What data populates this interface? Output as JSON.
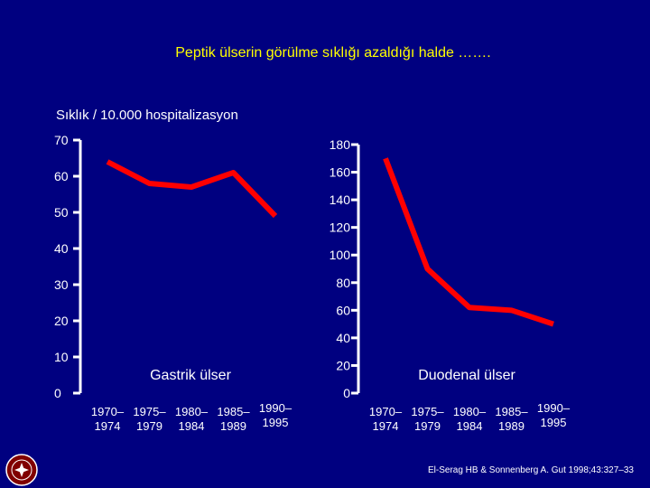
{
  "slide": {
    "title": "Peptik ülserin görülme sıklığı azaldığı halde …….",
    "unit_label": "Sıklık / 10.000 hospitalizasyon",
    "citation": "El-Serag HB & Sonnenberg A. Gut 1998;43:327–33",
    "colors": {
      "background": "#000080",
      "title": "#ffff00",
      "line": "#ff0000",
      "text": "#ffffff"
    },
    "logo_icon": "university-seal-icon"
  },
  "chart_data": [
    {
      "type": "line",
      "title": "Gastrik ülser",
      "x": [
        [
          "1970–",
          "1974"
        ],
        [
          "1975–",
          "1979"
        ],
        [
          "1980–",
          "1984"
        ],
        [
          "1985–",
          "1989"
        ],
        [
          "1990–",
          "1995"
        ]
      ],
      "y_ticks": [
        0,
        10,
        20,
        30,
        40,
        50,
        60,
        70
      ],
      "ylim": [
        0,
        70
      ],
      "series": [
        {
          "values": [
            64,
            58,
            57,
            61,
            49
          ]
        }
      ],
      "grid": false
    },
    {
      "type": "line",
      "title": "Duodenal ülser",
      "x": [
        [
          "1970–",
          "1974"
        ],
        [
          "1975–",
          "1979"
        ],
        [
          "1980–",
          "1984"
        ],
        [
          "1985–",
          "1989"
        ],
        [
          "1990–",
          "1995"
        ]
      ],
      "y_ticks": [
        0,
        20,
        40,
        60,
        80,
        100,
        120,
        140,
        160,
        180
      ],
      "ylim": [
        0,
        180
      ],
      "series": [
        {
          "values": [
            170,
            90,
            62,
            60,
            50
          ]
        }
      ],
      "grid": false
    }
  ]
}
